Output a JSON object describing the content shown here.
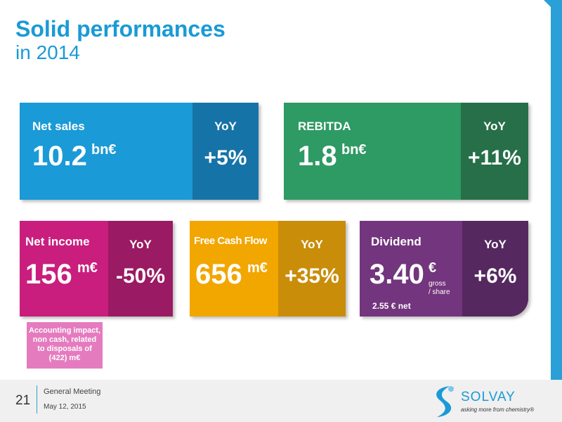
{
  "title": "Solid performances",
  "subtitle": "in 2014",
  "cards": {
    "net_sales": {
      "label": "Net sales",
      "value": "10.2",
      "unit": "bn€",
      "yoy_label": "YoY",
      "yoy": "+5%",
      "color": "#1a9ad6",
      "yoy_color": "#1673a8"
    },
    "rebitda": {
      "label": "REBITDA",
      "value": "1.8",
      "unit": "bn€",
      "yoy_label": "YoY",
      "yoy": "+11%",
      "color": "#2e9a64",
      "yoy_color": "#266f49"
    },
    "net_income": {
      "label": "Net income",
      "value": "156",
      "unit": "m€",
      "yoy_label": "YoY",
      "yoy": "-50%",
      "color": "#c91e7d",
      "yoy_color": "#9a1a63"
    },
    "free_cash_flow": {
      "label": "Free Cash Flow",
      "value": "656",
      "unit": "m€",
      "yoy_label": "YoY",
      "yoy": "+35%",
      "color": "#f2a600",
      "yoy_color": "#c98d0a"
    },
    "dividend": {
      "label": "Dividend",
      "value": "3.40",
      "unit": "€",
      "unit_sub1": "gross",
      "unit_sub2": "/ share",
      "net": "2.55 € net",
      "yoy_label": "YoY",
      "yoy": "+6%",
      "color": "#73357d",
      "yoy_color": "#55285f"
    }
  },
  "note": {
    "line1": "Accounting impact,",
    "line2": "non cash, related",
    "line3": "to disposals of",
    "line4": "(422) m€"
  },
  "footer": {
    "page": "21",
    "meeting": "General Meeting",
    "date": "May 12, 2015",
    "brand": "SOLVAY",
    "tagline": "asking more from chemistry®"
  }
}
